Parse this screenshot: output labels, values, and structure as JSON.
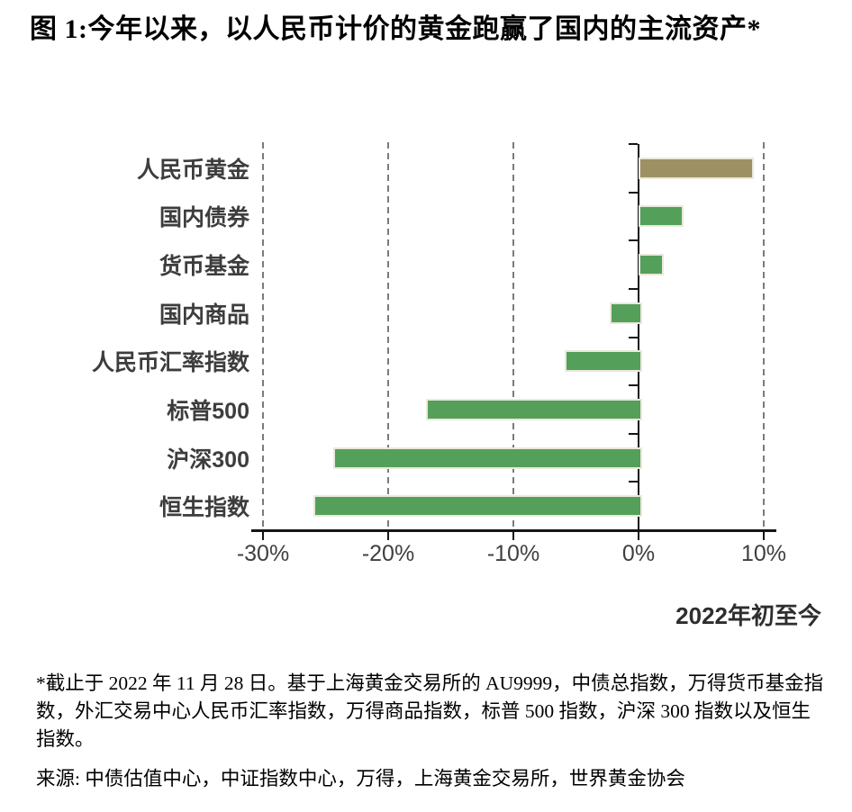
{
  "title": "图 1:今年以来，以人民币计价的黄金跑赢了国内的主流资产*",
  "chart_data": {
    "type": "bar",
    "orientation": "horizontal",
    "title": "图 1:今年以来，以人民币计价的黄金跑赢了国内的主流资产*",
    "categories": [
      "人民币黄金",
      "国内债券",
      "货币基金",
      "国内商品",
      "人民币汇率指数",
      "标普500",
      "沪深300",
      "恒生指数"
    ],
    "values": [
      8.9,
      3.3,
      1.7,
      -2.3,
      -5.9,
      -17.0,
      -24.4,
      -26.0
    ],
    "unit": "%",
    "bar_colors": [
      "#9d9164",
      "#54a05a",
      "#54a05a",
      "#54a05a",
      "#54a05a",
      "#54a05a",
      "#54a05a",
      "#54a05a"
    ],
    "xlabel": "2022年初至今",
    "xlim": [
      -30,
      10
    ],
    "tick_values": [
      -30,
      -20,
      -10,
      0,
      10
    ],
    "tick_labels": [
      "-30%",
      "-20%",
      "-10%",
      "0%",
      "10%"
    ],
    "grid": "vertical-dashed",
    "legend": "none",
    "colors": {
      "highlight_gold": "#9d9164",
      "series_green": "#54a05a",
      "gridline": "#7b7b7b",
      "axis": "#151515",
      "bar_border": "#ebe8dd",
      "label_text": "#3d3d3d",
      "tick_text": "#3f3f3f"
    }
  },
  "footnote": "*截止于 2022 年 11 月 28 日。基于上海黄金交易所的 AU9999，中债总指数，万得货币基金指数，外汇交易中心人民币汇率指数，万得商品指数，标普 500 指数，沪深 300 指数以及恒生指数。",
  "source": "来源: 中债估值中心，中证指数中心，万得，上海黄金交易所，世界黄金协会"
}
